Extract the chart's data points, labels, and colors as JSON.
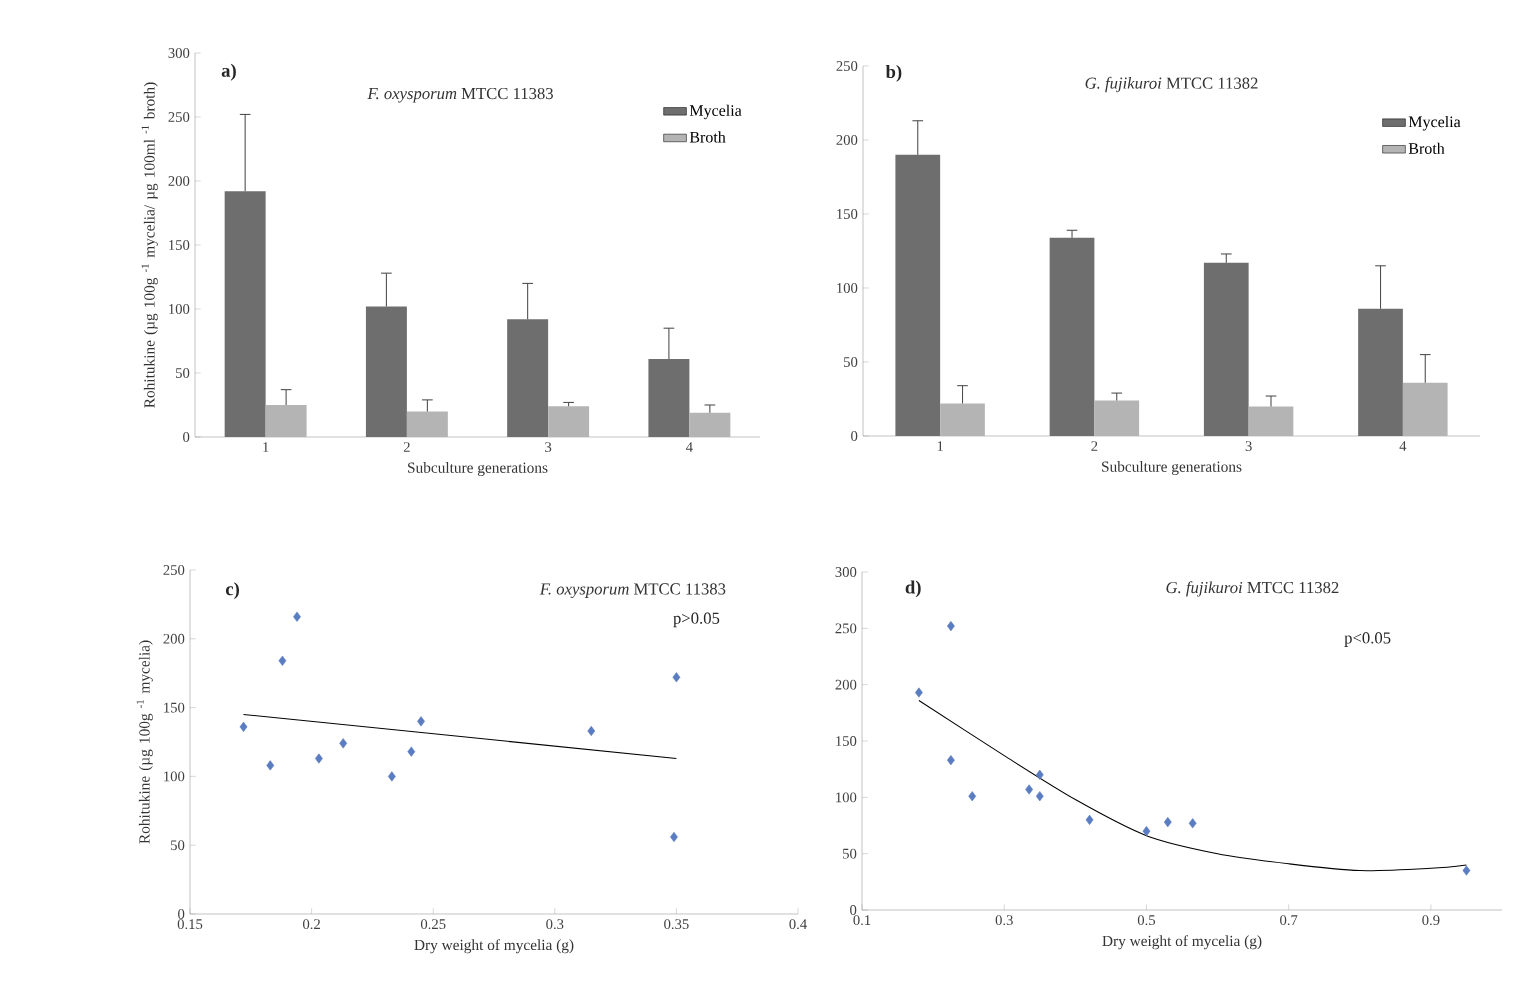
{
  "chart_data": [
    {
      "type": "bar",
      "title": "*F. oxysporum* MTCC 11383",
      "xlabel": "Subculture generations",
      "ylabel": "Rohitukine (µg 100g $^{-1}$ mycelia/ µg 100ml $^{-1}$ broth)",
      "annotations": [
        "a)"
      ],
      "categories": [
        "1",
        "2",
        "3",
        "4"
      ],
      "ylim": [
        0,
        300
      ],
      "yticks": [
        0,
        50,
        100,
        150,
        200,
        250,
        300
      ],
      "legend": "top right",
      "series": [
        {
          "name": "Mycelia",
          "color": "#6e6e6e",
          "values": [
            192,
            102,
            92,
            61
          ],
          "errors": [
            [
              192,
              252
            ],
            [
              102,
              128
            ],
            [
              92,
              120
            ],
            [
              61,
              85
            ]
          ]
        },
        {
          "name": "Broth",
          "color": "#b4b4b4",
          "values": [
            25,
            20,
            24,
            19
          ],
          "errors": [
            [
              25,
              37
            ],
            [
              20,
              29
            ],
            [
              24,
              27
            ],
            [
              19,
              25
            ]
          ]
        }
      ]
    },
    {
      "type": "bar",
      "title": "*G. fujikuroi*  MTCC 11382",
      "xlabel": "Subculture generations",
      "annotations": [
        "b)"
      ],
      "categories": [
        "1",
        "2",
        "3",
        "4"
      ],
      "ylim": [
        0,
        250
      ],
      "yticks": [
        0,
        50,
        100,
        150,
        200,
        250
      ],
      "legend": "top right",
      "series": [
        {
          "name": "Mycelia",
          "color": "#6e6e6e",
          "values": [
            190,
            134,
            117,
            86
          ],
          "errors": [
            [
              190,
              213
            ],
            [
              134,
              139
            ],
            [
              117,
              123
            ],
            [
              86,
              115
            ]
          ]
        },
        {
          "name": "Broth",
          "color": "#b4b4b4",
          "values": [
            22,
            24,
            20,
            36
          ],
          "errors": [
            [
              22,
              34
            ],
            [
              24,
              29
            ],
            [
              20,
              27
            ],
            [
              36,
              55
            ]
          ]
        }
      ]
    },
    {
      "type": "scatter",
      "title": "*F. oxysporum*  MTCC 11383",
      "xlabel": "Dry weight of mycelia (g)",
      "ylabel": "Rohitukine (µg 100g $^{-1}$ mycelia)",
      "annotations": [
        "c)",
        "p>0.05"
      ],
      "xlim": [
        0.15,
        0.4
      ],
      "xticks": [
        0.15,
        0.2,
        0.25,
        0.3,
        0.35,
        0.4
      ],
      "ylim": [
        0,
        250
      ],
      "yticks": [
        0,
        50,
        100,
        150,
        200,
        250
      ],
      "series": [
        {
          "type": "scatter",
          "color": "#5a7cc0",
          "marker": "diamond",
          "x": [
            0.172,
            0.183,
            0.188,
            0.194,
            0.203,
            0.213,
            0.233,
            0.241,
            0.245,
            0.315,
            0.349,
            0.35
          ],
          "values": [
            136,
            108,
            184,
            216,
            113,
            124,
            100,
            118,
            140,
            133,
            56,
            172
          ]
        },
        {
          "type": "line",
          "color": "#000000",
          "marker": "none",
          "x": [
            0.172,
            0.35
          ],
          "values": [
            145,
            113
          ]
        }
      ]
    },
    {
      "type": "scatter",
      "title": "*G. fujikuroi*  MTCC 11382",
      "xlabel": "Dry weight of mycelia (g)",
      "annotations": [
        "d)",
        "p<0.05"
      ],
      "xlim": [
        0.1,
        1.0
      ],
      "xticks": [
        0.1,
        0.3,
        0.5,
        0.7,
        0.9
      ],
      "ylim": [
        0,
        300
      ],
      "yticks": [
        0,
        50,
        100,
        150,
        200,
        250,
        300
      ],
      "series": [
        {
          "type": "scatter",
          "color": "#5a7cc0",
          "marker": "diamond",
          "x": [
            0.18,
            0.225,
            0.225,
            0.255,
            0.335,
            0.35,
            0.35,
            0.42,
            0.5,
            0.53,
            0.565,
            0.95
          ],
          "values": [
            193,
            252,
            133,
            101,
            107,
            120,
            101,
            80,
            70,
            78,
            77,
            35
          ]
        },
        {
          "type": "line",
          "color": "#000000",
          "marker": "none",
          "x": [
            0.18,
            0.3,
            0.4,
            0.5,
            0.6,
            0.7,
            0.8,
            0.9,
            0.95
          ],
          "values": [
            186,
            137,
            98,
            66,
            50,
            41,
            35,
            37,
            40
          ]
        }
      ]
    }
  ]
}
